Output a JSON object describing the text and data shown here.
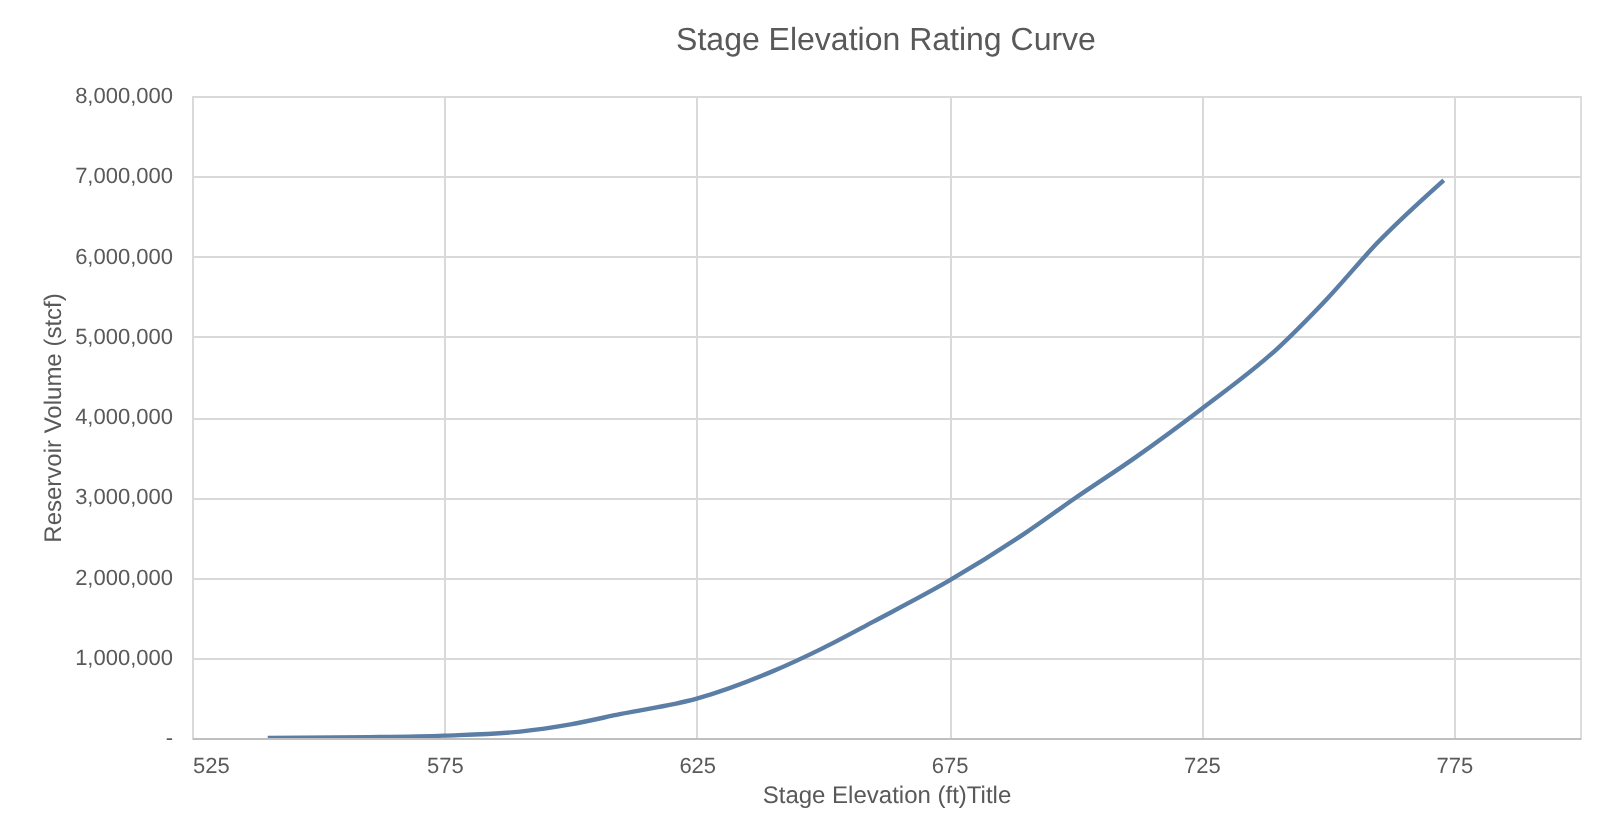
{
  "chart_data": {
    "type": "line",
    "title": "Stage Elevation Rating Curve",
    "xlabel": "Stage Elevation (ft)Title",
    "ylabel": "Reservoir Volume (stcf)",
    "x": [
      540,
      560,
      575,
      590,
      600,
      610,
      625,
      640,
      650,
      660,
      675,
      690,
      700,
      712,
      725,
      740,
      750,
      760,
      773
    ],
    "series": [
      {
        "color": "#5b7ea6",
        "values": [
          0,
          10000,
          30000,
          80000,
          170000,
          300000,
          490000,
          830000,
          1120000,
          1450000,
          1960000,
          2550000,
          2990000,
          3500000,
          4100000,
          4850000,
          5480000,
          6180000,
          6950000
        ]
      }
    ],
    "xlim": [
      525,
      800
    ],
    "xticks": [
      525,
      575,
      625,
      675,
      725,
      775
    ],
    "ylim": [
      0,
      8000000
    ],
    "yticks": [
      {
        "value": 0,
        "label": "-"
      },
      {
        "value": 1000000,
        "label": "1,000,000"
      },
      {
        "value": 2000000,
        "label": "2,000,000"
      },
      {
        "value": 3000000,
        "label": "3,000,000"
      },
      {
        "value": 4000000,
        "label": "4,000,000"
      },
      {
        "value": 5000000,
        "label": "5,000,000"
      },
      {
        "value": 6000000,
        "label": "6,000,000"
      },
      {
        "value": 7000000,
        "label": "7,000,000"
      },
      {
        "value": 8000000,
        "label": "8,000,000"
      }
    ],
    "grid": true,
    "marker": "none",
    "line_style": "solid"
  }
}
